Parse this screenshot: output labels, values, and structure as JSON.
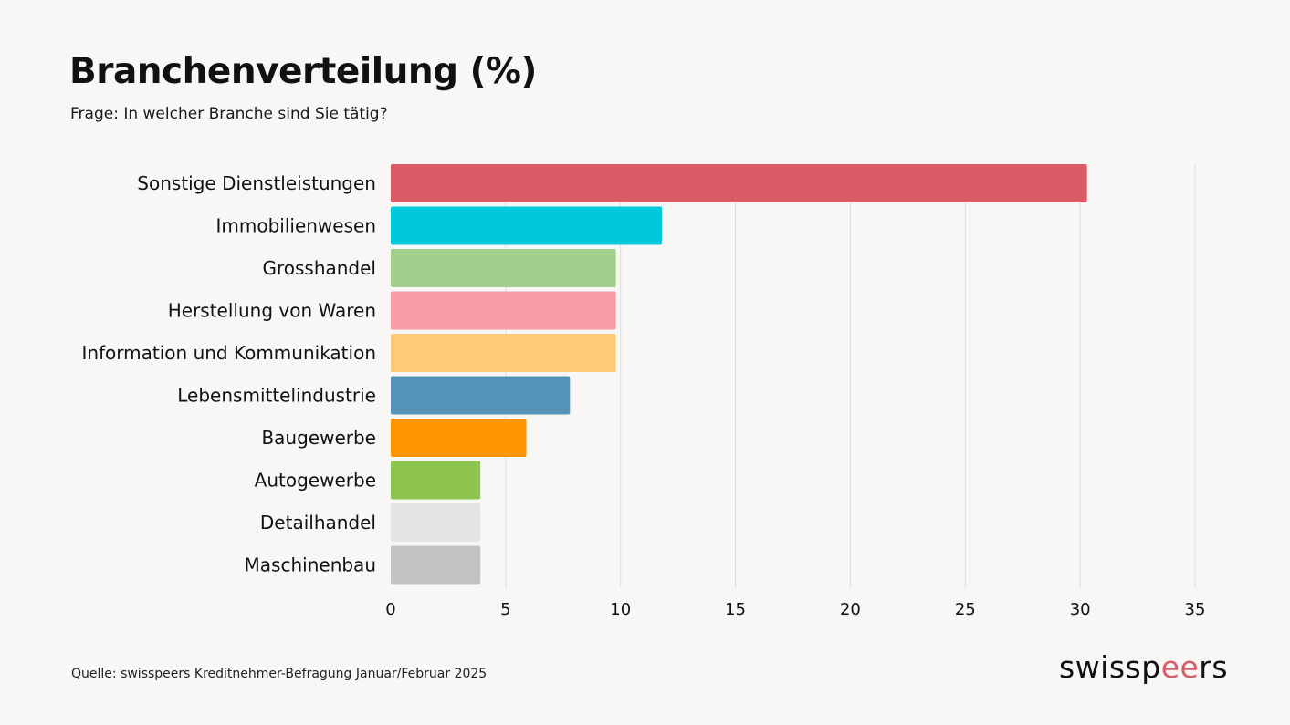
{
  "title": "Branchenverteilung (%)",
  "subtitle": "Frage: In welcher Branche sind Sie tätig?",
  "source": "Quelle: swisspeers Kreditnehmer-Befragung Januar/Februar 2025",
  "logo": {
    "text": "swisspeers",
    "accent_letters": "ee",
    "accent_color": "#d95b66"
  },
  "chart_data": {
    "type": "bar",
    "orientation": "horizontal",
    "categories": [
      "Sonstige Dienstleistungen",
      "Immobilienwesen",
      "Grosshandel",
      "Herstellung von Waren",
      "Information und Kommunikation",
      "Lebensmittelindustrie",
      "Baugewerbe",
      "Autogewerbe",
      "Detailhandel",
      "Maschinenbau"
    ],
    "values": [
      30.3,
      11.8,
      9.8,
      9.8,
      9.8,
      7.8,
      5.9,
      3.9,
      3.9,
      3.9
    ],
    "colors": [
      "#d95b66",
      "#00c9dc",
      "#a2d08c",
      "#f99ea8",
      "#fecb79",
      "#5594b8",
      "#ff9500",
      "#8cc44d",
      "#e4e4e4",
      "#c3c3c3"
    ],
    "xlim": [
      0,
      35
    ],
    "xticks": [
      "0",
      "5",
      "10",
      "15",
      "20",
      "25",
      "30",
      "35"
    ],
    "grid": true,
    "grid_color": "#dddddd"
  }
}
